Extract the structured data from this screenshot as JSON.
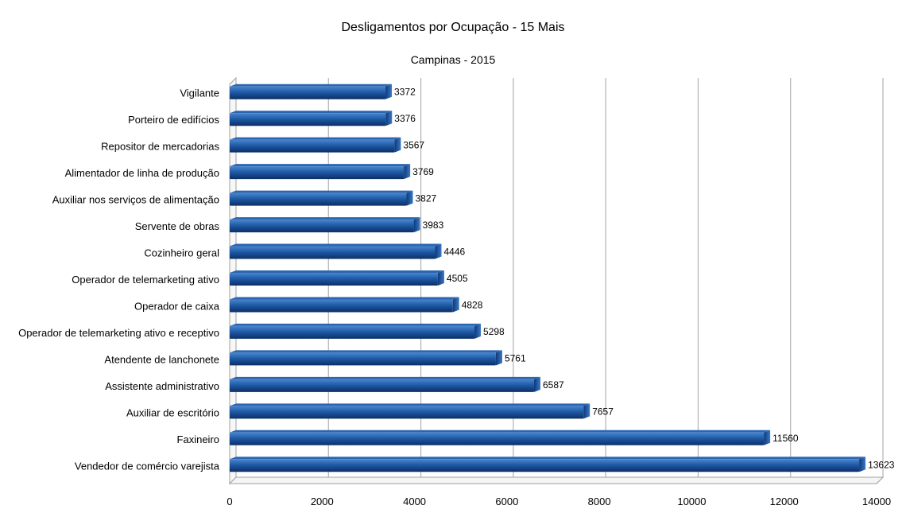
{
  "chart_data": {
    "type": "bar",
    "orientation": "horizontal",
    "title": "Desligamentos por Ocupação - 15 Mais",
    "subtitle": "Campinas - 2015",
    "categories": [
      "Vigilante",
      "Porteiro de edifícios",
      "Repositor de mercadorias",
      "Alimentador de linha de produção",
      "Auxiliar nos serviços de alimentação",
      "Servente de obras",
      "Cozinheiro geral",
      "Operador de telemarketing ativo",
      "Operador de caixa",
      "Operador de telemarketing ativo e receptivo",
      "Atendente de lanchonete",
      "Assistente administrativo",
      "Auxiliar de escritório",
      "Faxineiro",
      "Vendedor de comércio varejista"
    ],
    "values": [
      3372,
      3376,
      3567,
      3769,
      3827,
      3983,
      4446,
      4505,
      4828,
      5298,
      5761,
      6587,
      7657,
      11560,
      13623
    ],
    "data_labels": [
      "3372",
      "3376",
      "3567",
      "3769",
      "3827",
      "3983",
      "4446",
      "4505",
      "4828",
      "5298",
      "5761",
      "6587",
      "7657",
      "11560",
      "13623"
    ],
    "xlim": [
      0,
      14000
    ],
    "x_ticks": [
      "0",
      "2000",
      "4000",
      "6000",
      "8000",
      "10000",
      "12000",
      "14000"
    ],
    "grid": true,
    "legend": "none",
    "colors": {
      "bar": "#1f5aa6",
      "bar_dark": "#0b2f66",
      "bar_light": "#4a86cf",
      "grid": "#b3b3b3"
    }
  }
}
